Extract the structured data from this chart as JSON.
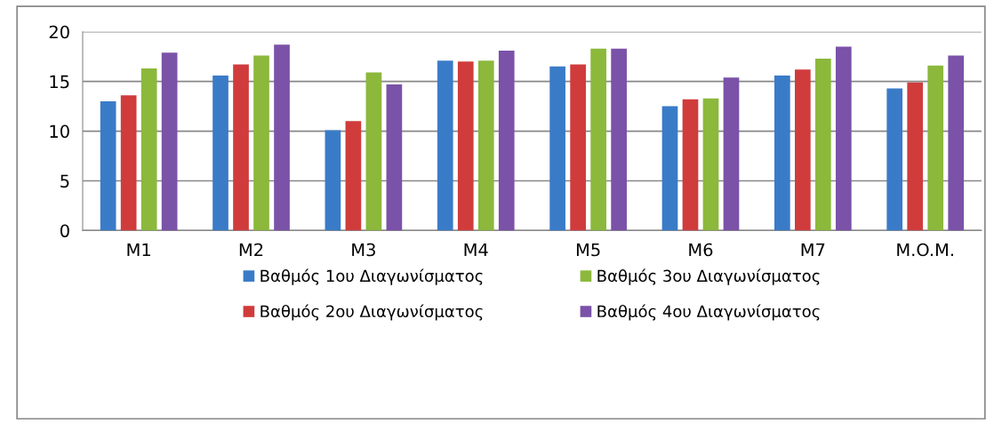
{
  "chart_data": {
    "type": "bar",
    "categories": [
      "M1",
      "M2",
      "M3",
      "M4",
      "M5",
      "M6",
      "M7",
      "M.O.M."
    ],
    "series": [
      {
        "name": "Βαθμός 1ου Διαγωνίσματος",
        "color": "#3a7bc8",
        "values": [
          13.0,
          15.6,
          10.1,
          17.1,
          16.5,
          12.5,
          15.6,
          14.3
        ]
      },
      {
        "name": "Βαθμός 2ου Διαγωνίσματος",
        "color": "#d03c3c",
        "values": [
          13.6,
          16.7,
          11.0,
          17.0,
          16.7,
          13.2,
          16.2,
          14.9
        ]
      },
      {
        "name": "Βαθμός 3ου Διαγωνίσματος",
        "color": "#8cb83c",
        "values": [
          16.3,
          17.6,
          15.9,
          17.1,
          18.3,
          13.3,
          17.3,
          16.6
        ]
      },
      {
        "name": "Βαθμός 4ου Διαγωνίσματος",
        "color": "#7a52a8",
        "values": [
          17.9,
          18.7,
          14.7,
          18.1,
          18.3,
          15.4,
          18.5,
          17.6
        ]
      }
    ],
    "ylim": [
      0,
      20
    ],
    "yticks": [
      0,
      5,
      10,
      15,
      20
    ],
    "grid": "y",
    "legend": "bottom"
  }
}
